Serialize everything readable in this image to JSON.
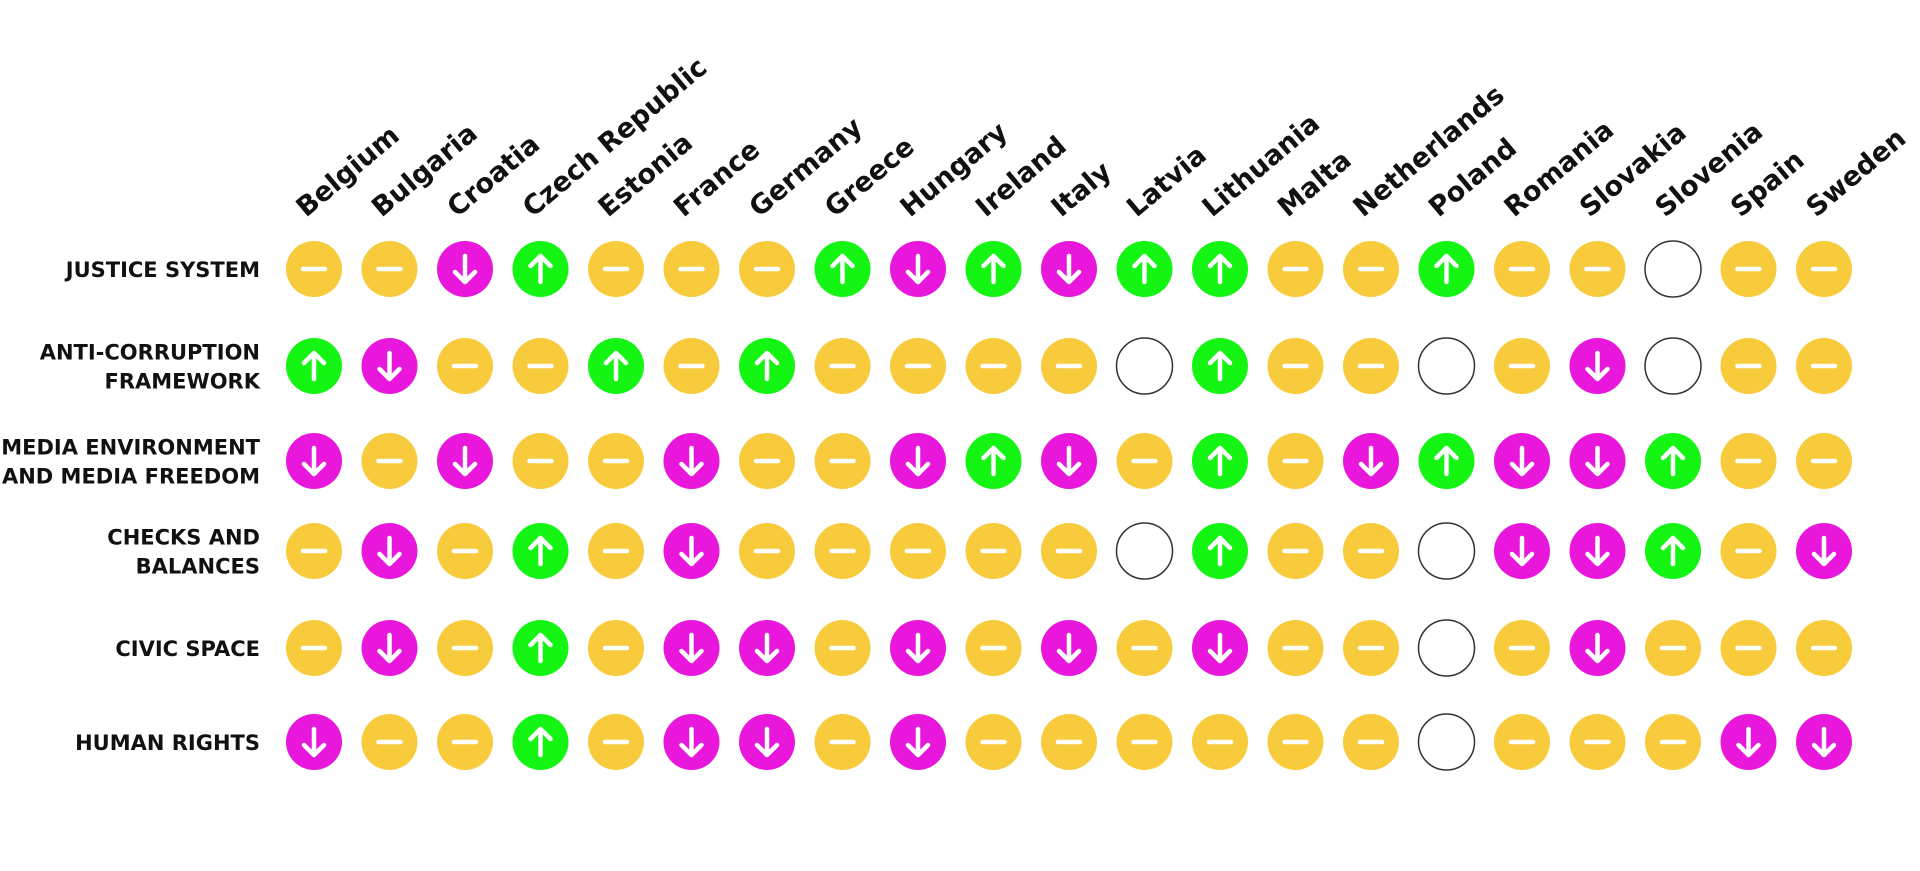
{
  "colors": {
    "same": "#F7CB3C",
    "improved": "#14F514",
    "worsened": "#E817DB",
    "no_data": "#FFFFFF",
    "no_data_stroke": "#333333",
    "symbol": "#FFFFFF"
  },
  "chart_data": {
    "type": "table",
    "title": "",
    "legend": "none",
    "columns": [
      "Belgium",
      "Bulgaria",
      "Croatia",
      "Czech Republic",
      "Estonia",
      "France",
      "Germany",
      "Greece",
      "Hungary",
      "Ireland",
      "Italy",
      "Latvia",
      "Lithuania",
      "Malta",
      "Netherlands",
      "Poland",
      "Romania",
      "Slovakia",
      "Slovenia",
      "Spain",
      "Sweden"
    ],
    "rows": [
      {
        "label": [
          "JUSTICE SYSTEM"
        ],
        "values": [
          "same",
          "same",
          "down",
          "up",
          "same",
          "same",
          "same",
          "up",
          "down",
          "up",
          "down",
          "up",
          "up",
          "same",
          "same",
          "up",
          "same",
          "same",
          "none",
          "same",
          "same"
        ]
      },
      {
        "label": [
          "ANTI-CORRUPTION",
          "FRAMEWORK"
        ],
        "values": [
          "up",
          "down",
          "same",
          "same",
          "up",
          "same",
          "up",
          "same",
          "same",
          "same",
          "same",
          "none",
          "up",
          "same",
          "same",
          "none",
          "same",
          "down",
          "none",
          "same",
          "same"
        ]
      },
      {
        "label": [
          "MEDIA ENVIRONMENT",
          "AND MEDIA FREEDOM"
        ],
        "values": [
          "down",
          "same",
          "down",
          "same",
          "same",
          "down",
          "same",
          "same",
          "down",
          "up",
          "down",
          "same",
          "up",
          "same",
          "down",
          "up",
          "down",
          "down",
          "up",
          "same",
          "same"
        ]
      },
      {
        "label": [
          "CHECKS AND",
          "BALANCES"
        ],
        "values": [
          "same",
          "down",
          "same",
          "up",
          "same",
          "down",
          "same",
          "same",
          "same",
          "same",
          "same",
          "none",
          "up",
          "same",
          "same",
          "none",
          "down",
          "down",
          "up",
          "same",
          "down"
        ]
      },
      {
        "label": [
          "CIVIC SPACE"
        ],
        "values": [
          "same",
          "down",
          "same",
          "up",
          "same",
          "down",
          "down",
          "same",
          "down",
          "same",
          "down",
          "same",
          "down",
          "same",
          "same",
          "none",
          "same",
          "down",
          "same",
          "same",
          "same"
        ]
      },
      {
        "label": [
          "HUMAN RIGHTS"
        ],
        "values": [
          "down",
          "same",
          "same",
          "up",
          "same",
          "down",
          "down",
          "same",
          "down",
          "same",
          "same",
          "same",
          "same",
          "same",
          "same",
          "none",
          "same",
          "same",
          "same",
          "down",
          "down"
        ]
      }
    ]
  }
}
